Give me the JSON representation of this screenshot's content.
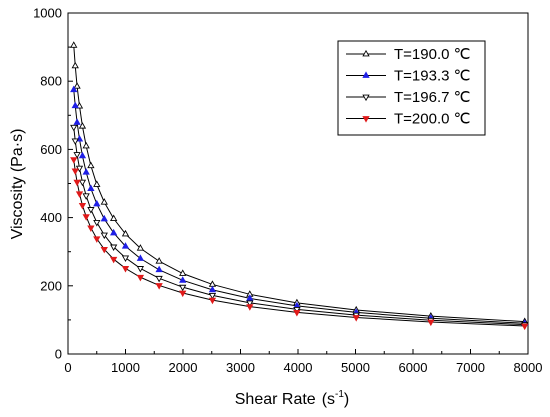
{
  "chart_data": {
    "type": "line",
    "xlabel": "Shear Rate",
    "xlabel_unit": "(s",
    "xlabel_unit_exp": "-1",
    "xlabel_unit_close": ")",
    "ylabel": "Viscosity (Pa·s)",
    "xlim": [
      0,
      8000
    ],
    "ylim": [
      0,
      1000
    ],
    "x_ticks": [
      0,
      1000,
      2000,
      3000,
      4000,
      5000,
      6000,
      7000,
      8000
    ],
    "y_ticks": [
      0,
      200,
      400,
      600,
      800,
      1000
    ],
    "grid": false,
    "legend_position": "top-right",
    "x": [
      100,
      126,
      158,
      200,
      251,
      316,
      398,
      501,
      631,
      794,
      1000,
      1259,
      1585,
      1995,
      2512,
      3162,
      3981,
      5012,
      6310,
      7943
    ],
    "series": [
      {
        "name": "T=190.0 ℃",
        "color": "#000000",
        "marker": "triangle-up-open",
        "values": [
          905,
          845,
          785,
          727,
          668,
          610,
          552,
          497,
          445,
          397,
          352,
          310,
          272,
          236,
          204,
          175,
          150,
          129,
          111,
          95
        ]
      },
      {
        "name": "T=193.3 ℃",
        "color": "#1f1fe6",
        "marker": "triangle-up-filled",
        "values": [
          775,
          728,
          679,
          630,
          581,
          533,
          485,
          440,
          396,
          355,
          316,
          280,
          247,
          216,
          188,
          163,
          141,
          122,
          105,
          90
        ]
      },
      {
        "name": "T=196.7 ℃",
        "color": "#000000",
        "marker": "triangle-down-open",
        "values": [
          665,
          625,
          585,
          545,
          504,
          464,
          424,
          386,
          349,
          314,
          282,
          251,
          222,
          196,
          172,
          150,
          131,
          114,
          99,
          86
        ]
      },
      {
        "name": "T=200.0 ℃",
        "color": "#e01a1a",
        "marker": "triangle-down-filled",
        "values": [
          570,
          537,
          504,
          470,
          436,
          403,
          370,
          338,
          307,
          278,
          251,
          225,
          201,
          179,
          158,
          139,
          122,
          107,
          94,
          82
        ]
      }
    ]
  }
}
